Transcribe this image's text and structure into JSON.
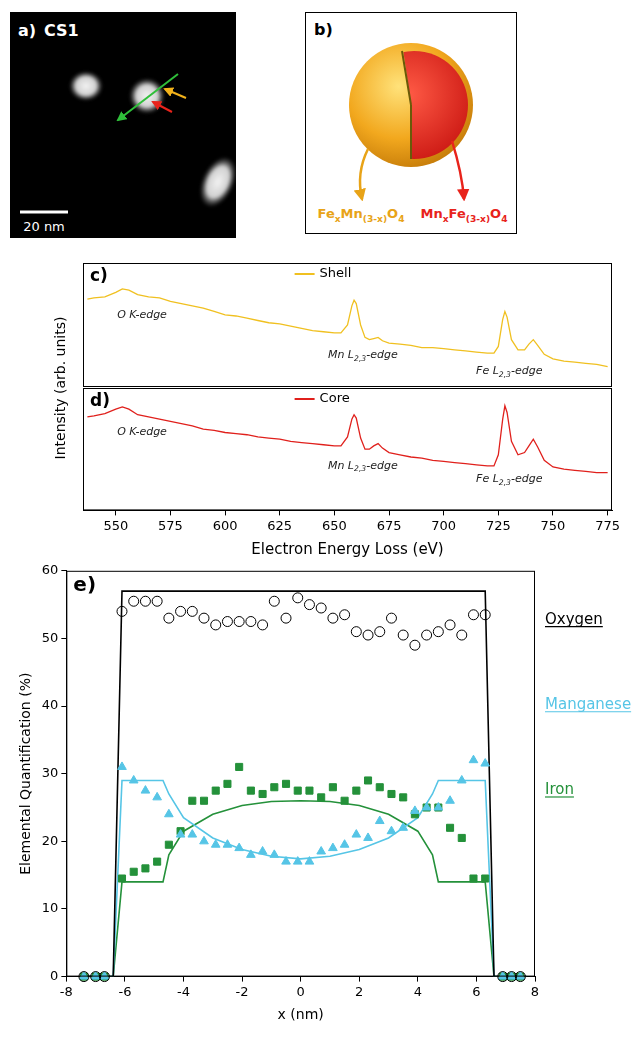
{
  "panel_a": {
    "letter": "a)",
    "title": "CS1",
    "scale_bar": "20 nm"
  },
  "panel_b": {
    "letter": "b)",
    "shell_label": [
      {
        "text": "Fe"
      },
      {
        "text": "x",
        "sub": true
      },
      {
        "text": "Mn"
      },
      {
        "text": "(3-x)",
        "sub": true
      },
      {
        "text": "O"
      },
      {
        "text": "4",
        "sub": true
      }
    ],
    "core_label": [
      {
        "text": "Mn"
      },
      {
        "text": "x",
        "sub": true
      },
      {
        "text": "Fe"
      },
      {
        "text": "(3-x)",
        "sub": true
      },
      {
        "text": "O"
      },
      {
        "text": "4",
        "sub": true
      }
    ]
  },
  "chart_data": [
    {
      "letter": "c)",
      "type": "line",
      "ylabel": "Intensity (arb. units)",
      "xlim": [
        535,
        777
      ],
      "ylim": [
        0,
        110
      ],
      "tick_labels": false,
      "grid": false,
      "legend": "top",
      "series": [
        {
          "name": "Shell",
          "color": "#f0c020",
          "x": [
            537,
            540,
            545,
            550,
            553,
            556,
            560,
            565,
            570,
            575,
            580,
            585,
            590,
            595,
            600,
            605,
            610,
            615,
            620,
            625,
            630,
            635,
            640,
            645,
            650,
            653,
            656,
            658,
            659,
            660,
            662,
            664,
            666,
            668,
            670,
            672,
            675,
            680,
            685,
            690,
            695,
            700,
            705,
            710,
            715,
            720,
            723,
            725,
            727,
            728,
            729,
            731,
            734,
            737,
            739,
            741,
            743,
            746,
            750,
            755,
            760,
            765,
            770,
            775
          ],
          "values": [
            78,
            79,
            80,
            84,
            87,
            86,
            82,
            80,
            79,
            76,
            74,
            72,
            70,
            67,
            64,
            63,
            61,
            59,
            57,
            56,
            54,
            52,
            50,
            49,
            48,
            48,
            55,
            72,
            77,
            74,
            55,
            44,
            42,
            43,
            44,
            41,
            39,
            38,
            37,
            35,
            35,
            34,
            33,
            32,
            31,
            30,
            30,
            36,
            60,
            67,
            62,
            42,
            33,
            33,
            38,
            42,
            37,
            29,
            25,
            23,
            22,
            21,
            20,
            18
          ]
        }
      ],
      "annotations": [
        {
          "segments": [
            {
              "text": "O K-edge"
            }
          ],
          "x": 562,
          "y": 64
        },
        {
          "segments": [
            {
              "text": "Mn L"
            },
            {
              "text": "2,3",
              "sub": true
            },
            {
              "text": "-edge"
            }
          ],
          "x": 663,
          "y": 28
        },
        {
          "segments": [
            {
              "text": "Fe L"
            },
            {
              "text": "2,3",
              "sub": true
            },
            {
              "text": "-edge"
            }
          ],
          "x": 730,
          "y": 14
        }
      ]
    },
    {
      "letter": "d)",
      "type": "line",
      "xlabel": "Electron Energy Loss (eV)",
      "xlim": [
        535,
        777
      ],
      "xticks": [
        550,
        575,
        600,
        625,
        650,
        675,
        700,
        725,
        750,
        775
      ],
      "ylim": [
        0,
        110
      ],
      "tick_labels": "x",
      "grid": false,
      "legend": "top",
      "series": [
        {
          "name": "Core",
          "color": "#e0201c",
          "x": [
            537,
            540,
            545,
            550,
            553,
            556,
            560,
            565,
            570,
            575,
            580,
            585,
            590,
            595,
            600,
            605,
            610,
            615,
            620,
            625,
            630,
            635,
            640,
            645,
            650,
            653,
            656,
            658,
            659,
            660,
            662,
            664,
            666,
            668,
            670,
            672,
            675,
            680,
            685,
            690,
            695,
            700,
            705,
            710,
            715,
            720,
            723,
            725,
            727,
            728,
            729,
            731,
            734,
            737,
            739,
            741,
            743,
            746,
            750,
            755,
            760,
            765,
            770,
            775
          ],
          "values": [
            84,
            85,
            87,
            91,
            93,
            91,
            86,
            84,
            82,
            80,
            78,
            76,
            73,
            72,
            70,
            69,
            68,
            66,
            65,
            64,
            62,
            61,
            60,
            59,
            58,
            58,
            66,
            82,
            86,
            83,
            65,
            55,
            55,
            58,
            60,
            56,
            52,
            50,
            48,
            47,
            45,
            44,
            43,
            42,
            41,
            40,
            40,
            50,
            82,
            94,
            88,
            62,
            50,
            52,
            58,
            64,
            57,
            45,
            39,
            37,
            36,
            35,
            34,
            34
          ]
        }
      ],
      "annotations": [
        {
          "segments": [
            {
              "text": "O K-edge"
            }
          ],
          "x": 562,
          "y": 70
        },
        {
          "segments": [
            {
              "text": "Mn L"
            },
            {
              "text": "2,3",
              "sub": true
            },
            {
              "text": "-edge"
            }
          ],
          "x": 663,
          "y": 40
        },
        {
          "segments": [
            {
              "text": "Fe L"
            },
            {
              "text": "2,3",
              "sub": true
            },
            {
              "text": "-edge"
            }
          ],
          "x": 730,
          "y": 28
        }
      ]
    },
    {
      "letter": "e)",
      "type": "scatter",
      "xlabel": "x (nm)",
      "ylabel": "Elemental Quantification (%)",
      "xlim": [
        -8,
        8
      ],
      "xticks": [
        -8,
        -6,
        -4,
        -2,
        0,
        2,
        4,
        6,
        8
      ],
      "ylim": [
        0,
        60
      ],
      "yticks": [
        0,
        10,
        20,
        30,
        40,
        50,
        60
      ],
      "grid": false,
      "legend": "right",
      "x": [
        -7.4,
        -7.0,
        -6.7,
        -6.1,
        -5.7,
        -5.3,
        -4.9,
        -4.5,
        -4.1,
        -3.7,
        -3.3,
        -2.9,
        -2.5,
        -2.1,
        -1.7,
        -1.3,
        -0.9,
        -0.5,
        -0.1,
        0.3,
        0.7,
        1.1,
        1.5,
        1.9,
        2.3,
        2.7,
        3.1,
        3.5,
        3.9,
        4.3,
        4.7,
        5.1,
        5.5,
        5.9,
        6.3,
        6.9,
        7.2,
        7.5
      ],
      "series": [
        {
          "name": "Oxygen",
          "color": "#000000",
          "marker": "circle_open",
          "values": [
            0,
            0,
            0,
            54,
            55.5,
            55.5,
            55.5,
            53,
            54,
            54,
            53,
            52,
            52.5,
            52.5,
            52.5,
            52,
            55.5,
            53,
            56,
            55,
            54.5,
            53,
            53.5,
            51,
            50.5,
            51,
            53,
            50.5,
            49,
            50.5,
            51,
            52,
            50.5,
            53.5,
            53.5,
            0,
            0,
            0
          ],
          "fit": {
            "x": [
              -7.4,
              -6.4,
              -6.1,
              6.3,
              6.6,
              7.7
            ],
            "values": [
              0,
              0,
              57,
              57,
              0,
              0
            ]
          }
        },
        {
          "name": "Manganese",
          "color": "#56c5e6",
          "marker": "triangle",
          "values": [
            0,
            0,
            0,
            31,
            29,
            27.5,
            26.5,
            24,
            21,
            21,
            20,
            19.5,
            19.5,
            19,
            18,
            18.5,
            18,
            17,
            17,
            17,
            18.5,
            19,
            19.5,
            21,
            20.5,
            23,
            21.5,
            22,
            24.5,
            25,
            25,
            26,
            29,
            32,
            31.5,
            0,
            0,
            0
          ],
          "fit": {
            "x": [
              -7.4,
              -6.4,
              -6.1,
              -4.7,
              -4.5,
              -4,
              -3,
              -2,
              -1,
              0,
              1,
              2,
              3,
              4,
              4.5,
              4.7,
              6.3,
              6.6,
              7.7
            ],
            "values": [
              0,
              0,
              29,
              29,
              27,
              23.5,
              20.5,
              18.8,
              17.8,
              17.4,
              17.8,
              18.8,
              20.5,
              23.5,
              27,
              29,
              29,
              0,
              0
            ]
          }
        },
        {
          "name": "Iron",
          "color": "#24913a",
          "marker": "square",
          "values": [
            0,
            0,
            0,
            14.5,
            15.5,
            16,
            17,
            19.5,
            21.5,
            26,
            26,
            27.5,
            28.5,
            31,
            27.5,
            27,
            28,
            28.5,
            27.5,
            27.5,
            26.5,
            28,
            26,
            27.5,
            29,
            28,
            27,
            26.5,
            24,
            25,
            25,
            22,
            20.5,
            14.5,
            14.5,
            0,
            0,
            0
          ],
          "fit": {
            "x": [
              -7.4,
              -6.4,
              -6.1,
              -4.7,
              -4.5,
              -4,
              -3,
              -2,
              -1,
              0,
              1,
              2,
              3,
              4,
              4.5,
              4.7,
              6.3,
              6.6,
              7.7
            ],
            "values": [
              0,
              0,
              14,
              14,
              18,
              21.5,
              24,
              25.3,
              25.9,
              26,
              25.9,
              25.3,
              24,
              21.5,
              18,
              14,
              14,
              0,
              0
            ]
          }
        }
      ]
    }
  ]
}
